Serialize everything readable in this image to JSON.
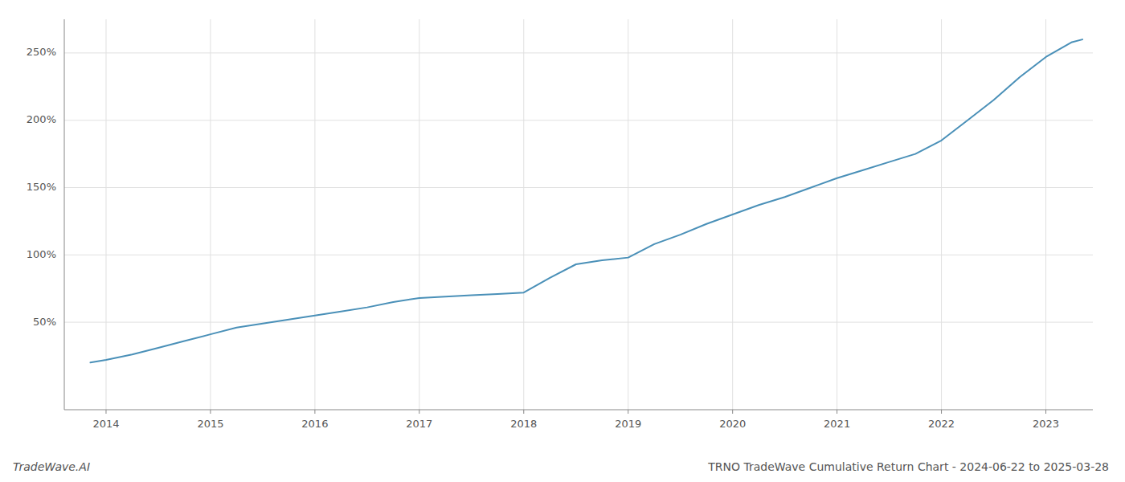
{
  "chart_data": {
    "type": "line",
    "title": "TRNO TradeWave Cumulative Return Chart - 2024-06-22 to 2025-03-28",
    "annotations": [
      "TradeWave.AI"
    ],
    "color": "#4a90b8",
    "grid": true,
    "xlim": [
      2013.6,
      2023.45
    ],
    "ylim": [
      -15,
      275
    ],
    "xticks": [
      2014,
      2015,
      2016,
      2017,
      2018,
      2019,
      2020,
      2021,
      2022,
      2023
    ],
    "yticks": [
      {
        "value": 50,
        "label": "50%"
      },
      {
        "value": 100,
        "label": "100%"
      },
      {
        "value": 150,
        "label": "150%"
      },
      {
        "value": 200,
        "label": "200%"
      },
      {
        "value": 250,
        "label": "250%"
      }
    ],
    "x": [
      2013.85,
      2014.0,
      2014.25,
      2014.5,
      2014.75,
      2015.0,
      2015.25,
      2015.5,
      2015.75,
      2016.0,
      2016.25,
      2016.5,
      2016.75,
      2017.0,
      2017.25,
      2017.5,
      2017.75,
      2018.0,
      2018.25,
      2018.5,
      2018.75,
      2019.0,
      2019.25,
      2019.5,
      2019.75,
      2020.0,
      2020.25,
      2020.5,
      2020.75,
      2021.0,
      2021.25,
      2021.5,
      2021.75,
      2022.0,
      2022.25,
      2022.5,
      2022.75,
      2023.0,
      2023.25,
      2023.35
    ],
    "values": [
      20,
      22,
      26,
      31,
      36,
      41,
      46,
      49,
      52,
      55,
      58,
      61,
      65,
      68,
      69,
      70,
      71,
      72,
      83,
      93,
      96,
      98,
      108,
      115,
      123,
      130,
      137,
      143,
      150,
      157,
      163,
      169,
      175,
      185,
      200,
      215,
      232,
      247,
      258,
      260
    ]
  }
}
